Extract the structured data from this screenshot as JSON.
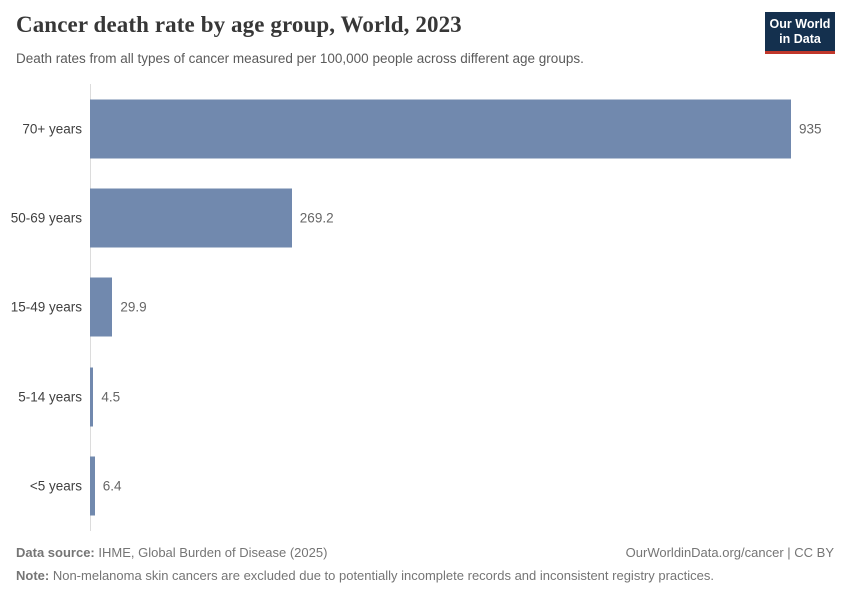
{
  "header": {
    "title": "Cancer death rate by age group, World, 2023",
    "subtitle": "Death rates from all types of cancer measured per 100,000 people across different age groups.",
    "logo": {
      "line1": "Our World",
      "line2": "in Data",
      "bg_color": "#14304E",
      "accent_color": "#C0372B"
    }
  },
  "chart_data": {
    "type": "bar",
    "orientation": "horizontal",
    "title": "Cancer death rate by age group, World, 2023",
    "categories": [
      "70+ years",
      "50-69 years",
      "15-49 years",
      "5-14 years",
      "<5 years"
    ],
    "values": [
      935,
      269.2,
      29.9,
      4.5,
      6.4
    ],
    "value_labels": [
      "935",
      "269.2",
      "29.9",
      "4.5",
      "6.4"
    ],
    "xlim": [
      0,
      935
    ],
    "grid": false,
    "legend": "none",
    "bar_color": "#7189AE",
    "axis_line_color": "#dcdcdc"
  },
  "footer": {
    "datasource_label": "Data source:",
    "datasource_text": " IHME, Global Burden of Disease (2025)",
    "citation": "OurWorldinData.org/cancer | CC BY",
    "note_label": "Note:",
    "note_text": " Non-melanoma skin cancers are excluded due to potentially incomplete records and inconsistent registry practices."
  }
}
